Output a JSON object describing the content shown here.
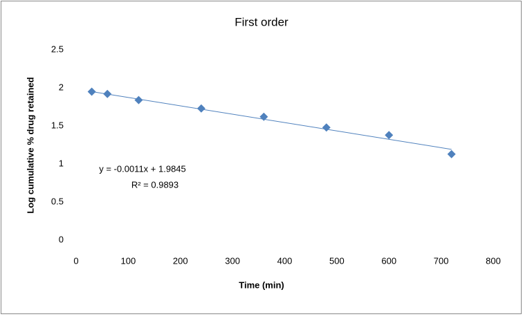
{
  "chart_data": {
    "type": "scatter",
    "title": "First order",
    "x_label": "Time (min)",
    "y_label": "Log cumulative % drug retained",
    "series": [
      {
        "color": "#4f81bd",
        "x": [
          30,
          60,
          120,
          240,
          360,
          480,
          600,
          720
        ],
        "values": [
          1.95,
          1.92,
          1.84,
          1.73,
          1.62,
          1.48,
          1.38,
          1.13
        ]
      }
    ],
    "trendline": {
      "slope": -0.0011,
      "intercept": 1.9845,
      "label": "y = -0.0011x + 1.9845",
      "r2_label": "R² = 0.9893"
    },
    "xlim": [
      0,
      800
    ],
    "xticks": [
      0,
      100,
      200,
      300,
      400,
      500,
      600,
      700,
      800
    ],
    "ylim": [
      0,
      2.5
    ],
    "yticks": [
      0,
      0.5,
      1,
      1.5,
      2,
      2.5
    ],
    "grid": false
  }
}
